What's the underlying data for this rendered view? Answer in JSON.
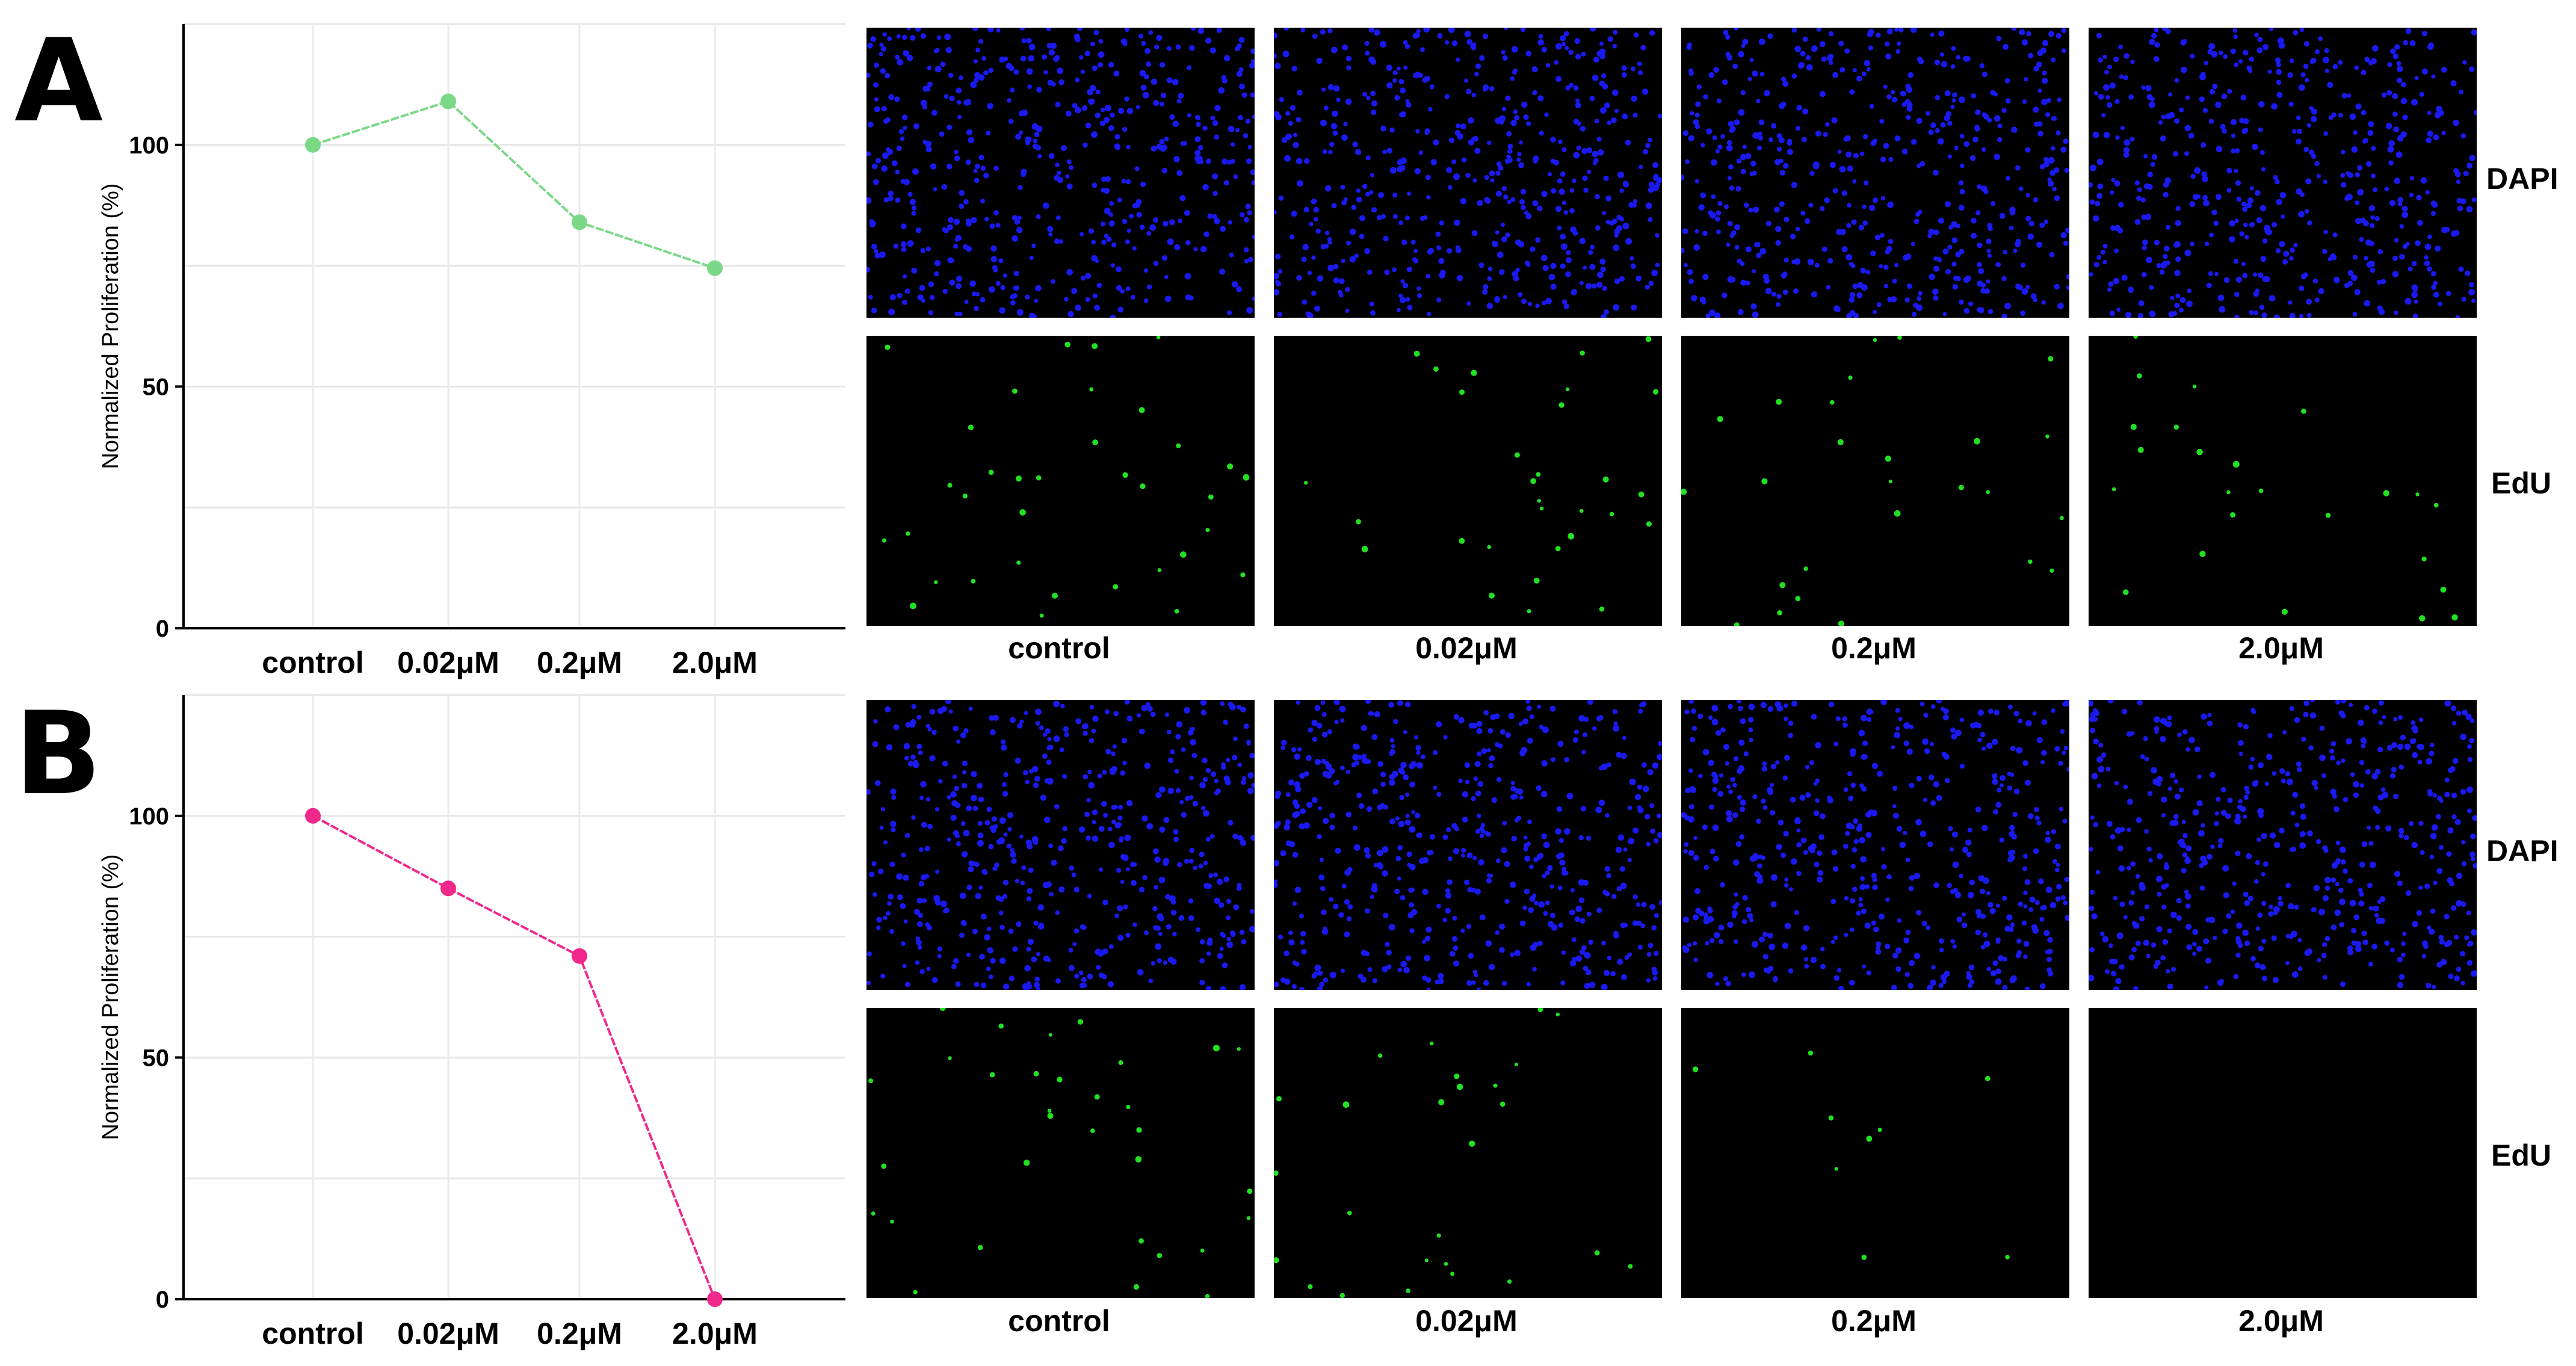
{
  "panels": [
    {
      "letter": "A",
      "colors": {
        "line": "#7BD887",
        "point": "#7BD887"
      },
      "chart_data": {
        "type": "line",
        "categories": [
          "control",
          "0.02μM",
          "0.2μM",
          "2.0μM"
        ],
        "values": [
          100,
          109,
          84,
          74.5
        ],
        "ylabel": "Normalized Proliferation (%)",
        "ylim": [
          0,
          125
        ],
        "yticks": [
          0,
          50,
          100
        ],
        "grid": true
      },
      "stains": [
        "DAPI",
        "EdU"
      ],
      "conditions": [
        "control",
        "0.02μM",
        "0.2μM",
        "2.0μM"
      ]
    },
    {
      "letter": "B",
      "colors": {
        "line": "#F0288C",
        "point": "#F0288C"
      },
      "chart_data": {
        "type": "line",
        "categories": [
          "control",
          "0.02μM",
          "0.2μM",
          "2.0μM"
        ],
        "values": [
          100,
          85,
          71,
          0
        ],
        "ylabel": "Normalized Proliferation (%)",
        "ylim": [
          0,
          125
        ],
        "yticks": [
          0,
          50,
          100
        ],
        "grid": true
      },
      "stains": [
        "DAPI",
        "EdU"
      ],
      "conditions": [
        "control",
        "0.02μM",
        "0.2μM",
        "2.0μM"
      ]
    }
  ],
  "image_colors": {
    "DAPI": "#1A1AF0",
    "EdU": "#22E022",
    "background": "#000000"
  },
  "edu_cell_counts": {
    "A": [
      35,
      30,
      26,
      24
    ],
    "B": [
      32,
      26,
      9,
      0
    ]
  }
}
